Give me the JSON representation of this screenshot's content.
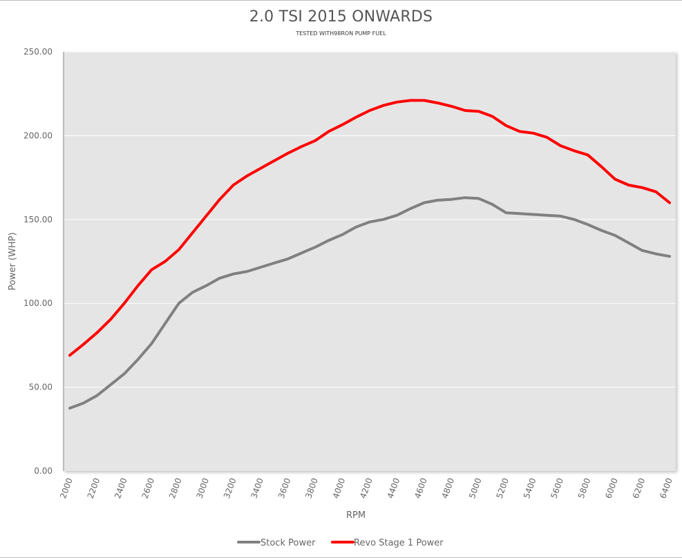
{
  "chart_data": {
    "type": "line",
    "title": "2.0 TSI 2015 ONWARDS",
    "subtitle": "TESTED WITH98RON PUMP FUEL",
    "xlabel": "RPM",
    "ylabel": "Power (WHP)",
    "ylim": [
      0,
      250
    ],
    "y_ticks": [
      "0.00",
      "50.00",
      "100.00",
      "150.00",
      "200.00",
      "250.00"
    ],
    "x": [
      2000,
      2100,
      2200,
      2300,
      2400,
      2500,
      2600,
      2700,
      2800,
      2900,
      3000,
      3100,
      3200,
      3300,
      3400,
      3500,
      3600,
      3700,
      3800,
      3900,
      4000,
      4100,
      4200,
      4300,
      4400,
      4500,
      4600,
      4700,
      4800,
      4900,
      5000,
      5100,
      5200,
      5300,
      5400,
      5500,
      5600,
      5700,
      5800,
      5900,
      6000,
      6100,
      6200,
      6300,
      6400
    ],
    "x_tick_labels": [
      "2000",
      "2200",
      "2400",
      "2600",
      "2800",
      "3000",
      "3200",
      "3400",
      "3600",
      "3800",
      "4000",
      "4200",
      "4400",
      "4600",
      "4800",
      "5000",
      "5200",
      "5400",
      "5600",
      "5800",
      "6000",
      "6200",
      "6400"
    ],
    "series": [
      {
        "name": "Stock Power",
        "color": "#808080",
        "values": [
          37.5,
          40.5,
          45,
          51.5,
          58,
          66.5,
          76,
          88,
          100,
          106.5,
          110.5,
          115,
          117.5,
          119,
          121.5,
          124,
          126.5,
          130,
          133.5,
          137.5,
          141,
          145.5,
          148.5,
          150,
          152.5,
          156.5,
          160,
          161.5,
          162,
          163,
          162.5,
          159,
          154,
          153.5,
          153,
          152.5,
          152,
          150,
          147,
          143.5,
          140.5,
          136,
          131.5,
          129.5,
          128
        ]
      },
      {
        "name": "Revo Stage 1 Power",
        "color": "#ff0000",
        "values": [
          69,
          75.5,
          82.5,
          90.5,
          100,
          110.5,
          120,
          125,
          132,
          142,
          152,
          162,
          170.5,
          176,
          180.5,
          185,
          189.5,
          193.5,
          197,
          202.5,
          206.5,
          211,
          215,
          218,
          220,
          221,
          221,
          219.5,
          217.5,
          215,
          214.5,
          211.5,
          206,
          202.5,
          201.5,
          199,
          194,
          191,
          188.5,
          181.5,
          174,
          170.5,
          169,
          166.5,
          160
        ]
      }
    ],
    "legend_position": "bottom",
    "grid": "horizontal",
    "plot_background": "#e5e5e5"
  }
}
